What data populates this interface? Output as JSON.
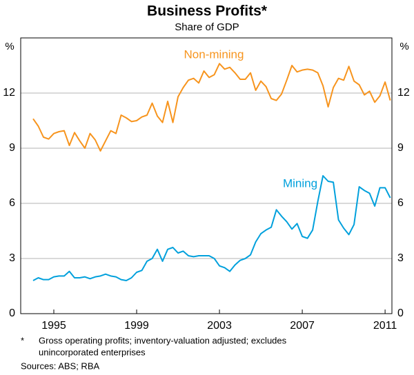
{
  "chart_data": {
    "type": "line",
    "title": "Business Profits*",
    "subtitle": "Share of GDP",
    "y_unit": "%",
    "x": [
      1994,
      1994.25,
      1994.5,
      1994.75,
      1995,
      1995.25,
      1995.5,
      1995.75,
      1996,
      1996.25,
      1996.5,
      1996.75,
      1997,
      1997.25,
      1997.5,
      1997.75,
      1998,
      1998.25,
      1998.5,
      1998.75,
      1999,
      1999.25,
      1999.5,
      1999.75,
      2000,
      2000.25,
      2000.5,
      2000.75,
      2001,
      2001.25,
      2001.5,
      2001.75,
      2002,
      2002.25,
      2002.5,
      2002.75,
      2003,
      2003.25,
      2003.5,
      2003.75,
      2004,
      2004.25,
      2004.5,
      2004.75,
      2005,
      2005.25,
      2005.5,
      2005.75,
      2006,
      2006.25,
      2006.5,
      2006.75,
      2007,
      2007.25,
      2007.5,
      2007.75,
      2008,
      2008.25,
      2008.5,
      2008.75,
      2009,
      2009.25,
      2009.5,
      2009.75,
      2010,
      2010.25,
      2010.5,
      2010.75,
      2011,
      2011.25
    ],
    "series": [
      {
        "name": "Non-mining",
        "color": "#f7941d",
        "values": [
          10.6,
          10.2,
          9.6,
          9.5,
          9.8,
          9.9,
          9.95,
          9.15,
          9.85,
          9.4,
          9.0,
          9.8,
          9.45,
          8.85,
          9.4,
          9.95,
          9.8,
          10.8,
          10.65,
          10.45,
          10.5,
          10.7,
          10.8,
          11.45,
          10.75,
          10.4,
          11.55,
          10.4,
          11.8,
          12.3,
          12.7,
          12.8,
          12.55,
          13.2,
          12.85,
          13.0,
          13.6,
          13.3,
          13.4,
          13.1,
          12.75,
          12.75,
          13.1,
          12.15,
          12.65,
          12.35,
          11.7,
          11.6,
          11.95,
          12.7,
          13.5,
          13.15,
          13.25,
          13.3,
          13.25,
          13.1,
          12.4,
          11.25,
          12.3,
          12.8,
          12.7,
          13.45,
          12.65,
          12.45,
          11.9,
          12.1,
          11.5,
          11.85,
          12.6,
          11.6
        ]
      },
      {
        "name": "Mining",
        "color": "#00a0dc",
        "values": [
          1.8,
          1.95,
          1.85,
          1.85,
          2.0,
          2.05,
          2.05,
          2.3,
          1.95,
          1.95,
          2.0,
          1.9,
          2.0,
          2.05,
          2.15,
          2.05,
          2.0,
          1.85,
          1.8,
          1.95,
          2.25,
          2.35,
          2.85,
          3.0,
          3.5,
          2.85,
          3.5,
          3.6,
          3.3,
          3.4,
          3.15,
          3.1,
          3.15,
          3.15,
          3.15,
          3.0,
          2.6,
          2.5,
          2.3,
          2.65,
          2.9,
          3.0,
          3.2,
          3.9,
          4.35,
          4.55,
          4.7,
          5.65,
          5.3,
          5.0,
          4.6,
          4.9,
          4.2,
          4.1,
          4.55,
          6.1,
          7.5,
          7.2,
          7.15,
          5.1,
          4.65,
          4.3,
          4.85,
          6.9,
          6.7,
          6.55,
          5.85,
          6.85,
          6.85,
          6.3
        ]
      }
    ],
    "xlim": [
      1993.4,
      2011.33
    ],
    "xticks": [
      1995,
      1999,
      2003,
      2007,
      2011
    ],
    "ylim": [
      0,
      15
    ],
    "yticks": [
      0,
      3,
      6,
      9,
      12
    ],
    "grid": true,
    "footnote": {
      "marker": "*",
      "lines": [
        "Gross operating profits; inventory-valuation adjusted; excludes",
        "unincorporated enterprises"
      ]
    },
    "sources": "Sources: ABS; RBA"
  }
}
